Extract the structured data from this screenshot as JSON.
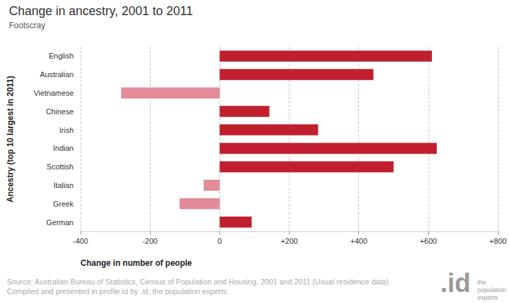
{
  "chart_data": {
    "type": "bar",
    "orientation": "horizontal",
    "title": "Change in ancestry, 2001 to 2011",
    "subtitle": "Footscray",
    "x_label": "Change in number of people",
    "y_label": "Ancestry (top 10 largest in 2011)",
    "categories": [
      "English",
      "Australian",
      "Vietnamese",
      "Chinese",
      "Irish",
      "Indian",
      "Scottish",
      "Italian",
      "Greek",
      "German"
    ],
    "values": [
      610,
      442,
      -283,
      143,
      283,
      624,
      500,
      -46,
      -115,
      92
    ],
    "colors": [
      "#c0202e",
      "#c0202e",
      "#e38b99",
      "#c0202e",
      "#c0202e",
      "#c0202e",
      "#c0202e",
      "#e38b99",
      "#e38b99",
      "#c0202e"
    ],
    "xlim": [
      -400,
      800
    ],
    "xticks": [
      -400,
      -200,
      0,
      {
        "value": 200,
        "label": "+200"
      },
      {
        "value": 400,
        "label": "+400"
      },
      {
        "value": 600,
        "label": "+600"
      },
      {
        "value": 800,
        "label": "+800"
      }
    ],
    "grid": true,
    "source": [
      "Source: Australian Bureau of Statistics, Census of Population and Housing, 2001 and 2011 (Usual residence data)",
      "Compiled and presented in profile.id by .id, the population experts."
    ],
    "logo": [
      ".id",
      "the",
      "population",
      "experts"
    ]
  }
}
